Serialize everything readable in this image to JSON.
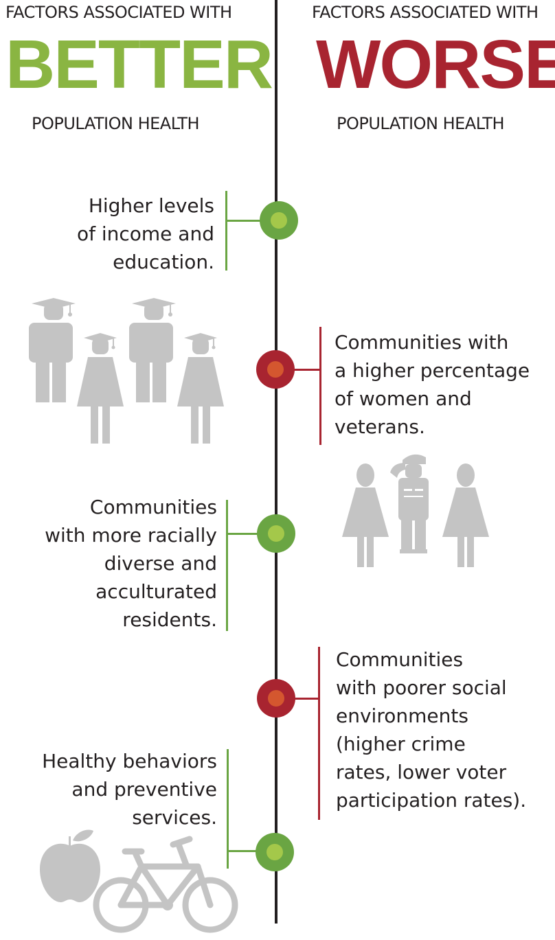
{
  "colors": {
    "better": "#8ab542",
    "better_dark": "#6aa543",
    "better_inner": "#a4c84a",
    "worse": "#a82430",
    "worse_inner": "#d4572f",
    "icon_gray": "#c4c4c4",
    "text": "#231f20"
  },
  "header": {
    "left": {
      "prefix": "FACTORS ASSOCIATED WITH",
      "keyword": "BETTER",
      "suffix": "POPULATION HEALTH"
    },
    "right": {
      "prefix": "FACTORS ASSOCIATED WITH",
      "keyword": "WORSE",
      "suffix": "POPULATION HEALTH"
    }
  },
  "factors": [
    {
      "side": "better",
      "lines": [
        "Higher levels",
        "of income and",
        "education."
      ],
      "icon": "graduates-icon"
    },
    {
      "side": "worse",
      "lines": [
        "Communities with",
        "a higher percentage",
        "of women and",
        "veterans."
      ],
      "icon": "women-and-veteran-icon"
    },
    {
      "side": "better",
      "lines": [
        "Communities",
        "with more racially",
        "diverse and",
        "acculturated",
        "residents."
      ],
      "icon": ""
    },
    {
      "side": "worse",
      "lines": [
        "Communities",
        "with poorer social",
        "environments",
        "(higher crime",
        "rates, lower voter",
        "participation rates)."
      ],
      "icon": ""
    },
    {
      "side": "better",
      "lines": [
        "Healthy behaviors",
        "and preventive",
        "services."
      ],
      "icon": "apple-and-bicycle-icon"
    }
  ]
}
